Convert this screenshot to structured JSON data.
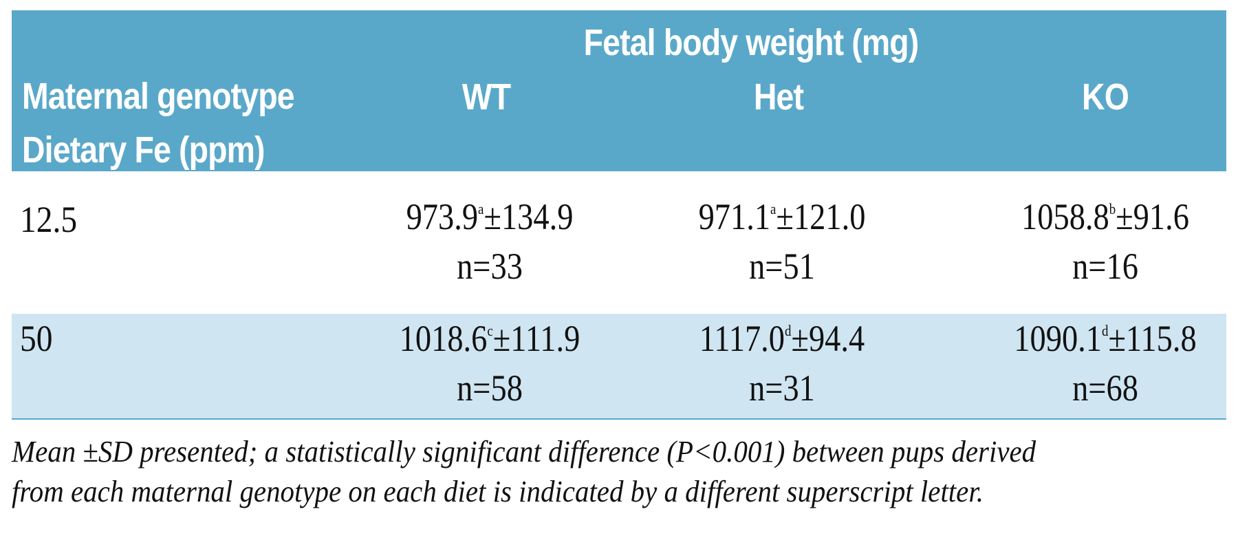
{
  "header": {
    "group_title": "Fetal body weight (mg)",
    "row_label_line1": "Maternal genotype",
    "row_label_line2": "Dietary Fe (ppm)",
    "columns": [
      "WT",
      "Het",
      "KO"
    ]
  },
  "rows": [
    {
      "label": "12.5",
      "cells": [
        {
          "mean": "973.9",
          "sup": "a",
          "sd": "±134.9",
          "n": "n=33"
        },
        {
          "mean": "971.1",
          "sup": "a",
          "sd": "±121.0",
          "n": "n=51"
        },
        {
          "mean": "1058.8",
          "sup": "b",
          "sd": "±91.6",
          "n": "n=16"
        }
      ]
    },
    {
      "label": "50",
      "cells": [
        {
          "mean": "1018.6",
          "sup": "c",
          "sd": "±111.9",
          "n": "n=58"
        },
        {
          "mean": "1117.0",
          "sup": "d",
          "sd": "±94.4",
          "n": "n=31"
        },
        {
          "mean": "1090.1",
          "sup": "d",
          "sd": "±115.8",
          "n": "n=68"
        }
      ]
    }
  ],
  "footnote": {
    "line1": "Mean ±SD presented; a statistically significant difference (P<0.001) between pups derived",
    "line2": "from each maternal genotype on each diet is indicated by a different superscript letter."
  },
  "colors": {
    "header_bg": "#5aa8c9",
    "header_text": "#ffffff",
    "shaded_row_bg": "#cfe5f1"
  }
}
